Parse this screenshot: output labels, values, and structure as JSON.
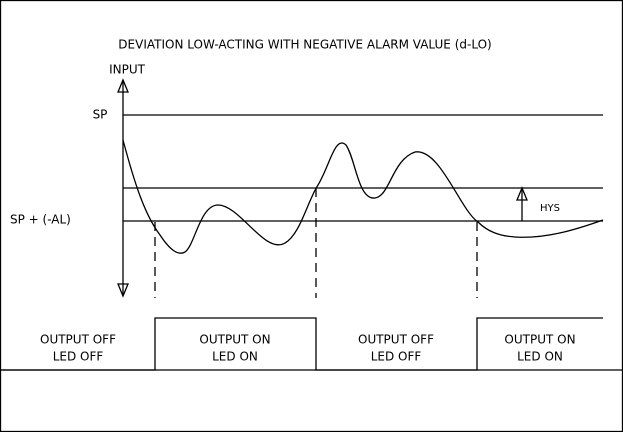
{
  "diagram": {
    "title": "DEVIATION LOW-ACTING WITH NEGATIVE ALARM VALUE (d-LO)",
    "axis_label": "INPUT",
    "levels": {
      "sp": "SP",
      "alarm": "SP + (-AL)",
      "hysteresis": "HYS"
    },
    "states": [
      {
        "output": "OUTPUT OFF",
        "led": "LED OFF"
      },
      {
        "output": "OUTPUT ON",
        "led": "LED ON"
      },
      {
        "output": "OUTPUT OFF",
        "led": "LED OFF"
      },
      {
        "output": "OUTPUT ON",
        "led": "LED ON"
      }
    ]
  }
}
